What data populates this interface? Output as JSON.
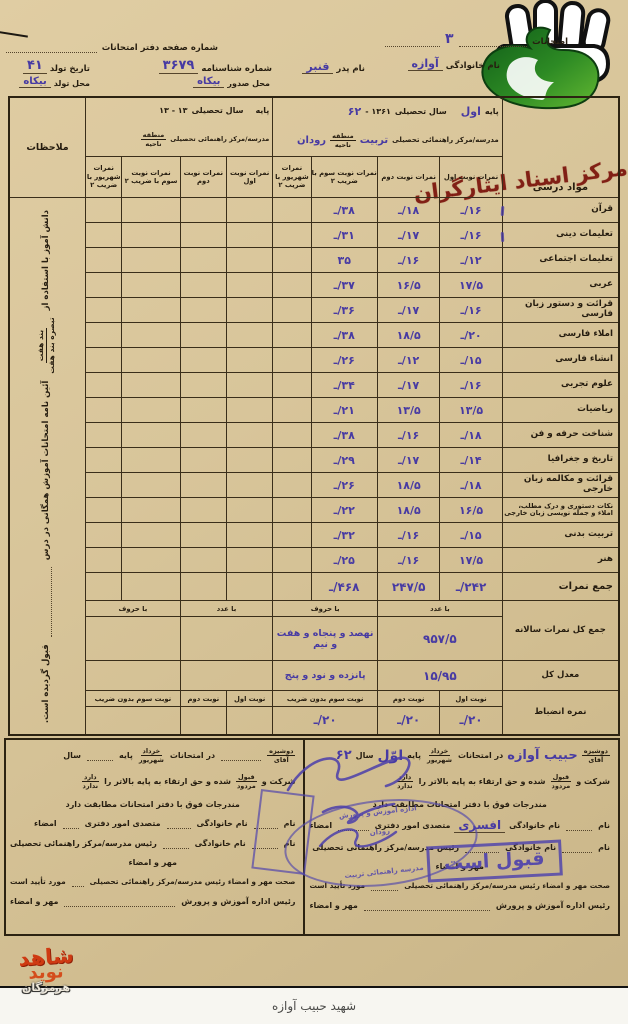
{
  "caption": "شهید حبیب آوازه",
  "watermark_text": "مرکز اسناد ایثارگران",
  "corner_logo": {
    "line1": "شاهد",
    "line2": "نوید",
    "line3": "هرمزگان"
  },
  "header": {
    "exam_label": "امتحانات",
    "exam_value": "۳",
    "page_no_label": "شماره صفحه دفتر امتحانات",
    "family_label": "نام خانوادگی",
    "family_value": "آوازه",
    "father_label": "نام پدر",
    "father_value": "قنبر",
    "id_label": "شماره شناسنامه",
    "id_value": "۳۶۷۹",
    "issue_label": "محل صدور",
    "issue_value": "بیکاه",
    "birthdate_label": "تاریخ تولد",
    "birthdate_value": "۴۱",
    "birthplace_label": "محل تولد",
    "birthplace_value": "بیکاه"
  },
  "table": {
    "subject_header": "مواد درسی",
    "remarks_header": "ملاحظات",
    "block_a": {
      "grade_label": "پایه",
      "grade_value": "اول",
      "year_label": "سال تحصیلی",
      "year_printed": "۱۳۶۱ -",
      "year_hw": "۶۲",
      "school_label": "مدرسه/مرکز راهنمائی تحصیلی",
      "school_value": "تربیت",
      "district_label": "منطقه",
      "area_label": "ناحیه",
      "district_value": "رودان"
    },
    "block_b": {
      "grade_label": "پایه",
      "year_label": "سال تحصیلی",
      "year_printed": "۱۳ -     ۱۳",
      "school_label": "مدرسه/مرکز راهنمائی تحصیلی",
      "district_label": "منطقه",
      "area_label": "ناحیه"
    },
    "col_headers": [
      "نمرات نوبت اول",
      "نمرات نوبت دوم",
      "نمرات نوبت سوم با ضریب ۲",
      "نمرات شهریور با ضریب ۲"
    ],
    "rows": [
      {
        "subject": "قرآن",
        "a": [
          "۱۶/ـ",
          "۱۸/ـ",
          "۳۸/ـ",
          ""
        ]
      },
      {
        "subject": "تعلیمات دینی",
        "a": [
          "۱۶/ـ",
          "۱۷/ـ",
          "۳۱/ـ",
          ""
        ]
      },
      {
        "subject": "تعلیمات اجتماعی",
        "a": [
          "۱۲/ـ",
          "۱۶/ـ",
          "۳۵",
          ""
        ]
      },
      {
        "subject": "عربی",
        "a": [
          "۱۷/۵",
          "۱۶/۵",
          "۳۷/ـ",
          ""
        ]
      },
      {
        "subject": "قرائت و دستور زبان فارسی",
        "a": [
          "۱۶/ـ",
          "۱۷/ـ",
          "۳۶/ـ",
          ""
        ]
      },
      {
        "subject": "املاء فارسی",
        "a": [
          "۲۰/ـ",
          "۱۸/۵",
          "۳۸/ـ",
          ""
        ]
      },
      {
        "subject": "انشاء فارسی",
        "a": [
          "۱۵/ـ",
          "۱۲/ـ",
          "۲۶/ـ",
          ""
        ]
      },
      {
        "subject": "علوم تجربی",
        "a": [
          "۱۶/ـ",
          "۱۷/ـ",
          "۳۴/ـ",
          ""
        ]
      },
      {
        "subject": "ریاضیات",
        "a": [
          "۱۳/۵",
          "۱۳/۵",
          "۲۱/ـ",
          ""
        ]
      },
      {
        "subject": "شناخت حرفه و فن",
        "a": [
          "۱۸/ـ",
          "۱۶/ـ",
          "۳۸/ـ",
          ""
        ]
      },
      {
        "subject": "تاریخ و جغرافیا",
        "a": [
          "۱۴/ـ",
          "۱۷/ـ",
          "۲۹/ـ",
          ""
        ]
      },
      {
        "subject": "قرائت و مکالمه زبان خارجی",
        "a": [
          "۱۸/ـ",
          "۱۸/۵",
          "۲۶/ـ",
          ""
        ]
      },
      {
        "subject": "نکات دستوری و درک مطلب، املاء و جمله نویسی زبان خارجی",
        "a": [
          "۱۶/۵",
          "۱۸/۵",
          "۲۲/ـ",
          ""
        ]
      },
      {
        "subject": "تربیت بدنی",
        "a": [
          "۱۵/ـ",
          "۱۶/ـ",
          "۳۲/ـ",
          ""
        ]
      },
      {
        "subject": "هنر",
        "a": [
          "۱۷/۵",
          "۱۶/ـ",
          "۲۵/ـ",
          ""
        ]
      }
    ],
    "sum_row": {
      "label": "جمع نمرات",
      "v1": "۲۴۲/ـ",
      "v2": "۲۴۷/۵",
      "v3": "۴۶۸/ـ"
    },
    "annual": {
      "label": "جمع کل نمرات سالانه",
      "num_header": "با عدد",
      "word_header": "با حروف",
      "num": "۹۵۷/۵",
      "words": "نهصد و پنجاه و هفت و نیم"
    },
    "average": {
      "label": "معدل کل",
      "num": "۱۵/۹۵",
      "words": "پانزده و نود و پنج"
    },
    "discipline": {
      "label": "نمره انضباط",
      "h1": "نوبت اول",
      "h2": "نوبت دوم",
      "h3": "نوبت سوم بدون ضریب",
      "v1": "۲۰/ـ",
      "v2": "۲۰/ـ",
      "v3": "۲۰/ـ"
    },
    "remarks": {
      "part1": "دانش آموز با استفاده از",
      "frac_top": "بند هفت",
      "frac_bottom": "تبصره بند هفت",
      "part2": "آئین نامه امتحانات آموزش همگانی در درس",
      "part3": "قبول گردیده است."
    }
  },
  "footer": {
    "l1_frac_top": "دوشیزه",
    "l1_frac_bottom": "آقای",
    "l1_name_value": "حبیب آوازه",
    "l1_mid": "در امتحانات",
    "l1_frac2_top": "خرداد",
    "l1_frac2_bottom": "شهریور",
    "l1_grade_label": "پایه",
    "l1_grade_value": "اوّل",
    "l1_year_label": "سال",
    "l1_year_value": "۶۲",
    "l2_a": "شرکت و",
    "l2_frac_top": "قبول",
    "l2_frac_bottom": "مردود",
    "l2_b": "شده و حق ارتقاء به پایه بالاتر را",
    "l2_frac2_top": "دارد",
    "l2_frac2_bottom": "ندارد",
    "l3": "مندرجات فوق با دفتر امتحانات مطابقت دارد",
    "l4_name_label": "نام",
    "l4_family_label": "نام خانوادگی",
    "l4_family_value": "افسری",
    "l4_role": "متصدی امور دفتری",
    "l4_sign": "امضاء",
    "l5_name_label": "نام",
    "l5_family_label": "نام خانوادگی",
    "l5_role": "رئیس مدرسه/مرکز راهنمائی تحصیلی",
    "l6": "مهر و امضاء",
    "l7a": "صحت مهر و امضاء رئیس مدرسه/مرکز راهنمائی تحصیلی",
    "l7b": "مورد تأیید است",
    "l8a": "رئیس اداره آموزش و پرورش",
    "l8b": "مهر و امضاء"
  },
  "stamps": {
    "approved": "قبول است",
    "oval_line1": "اداره آموزش و پرورش",
    "oval_line2": "رودان",
    "oval_line3": "مدرسه راهنمائی تربیت"
  }
}
